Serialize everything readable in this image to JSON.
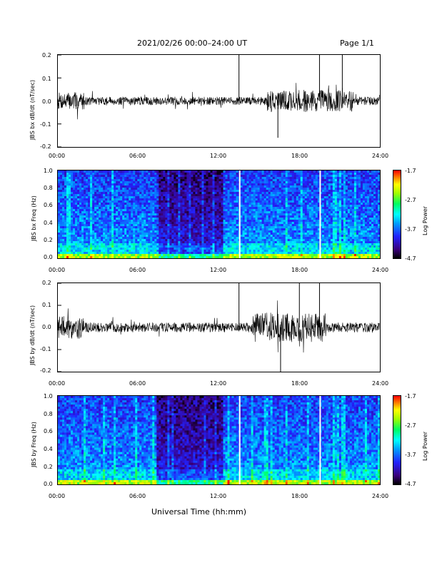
{
  "header": {
    "title": "2021/02/26  00:00–24:00 UT",
    "page": "Page 1/1"
  },
  "x_axis": {
    "ticks": [
      "00:00",
      "06:00",
      "12:00",
      "18:00",
      "24:00"
    ],
    "label": "Universal Time (hh:mm)"
  },
  "chart_data": [
    {
      "type": "line",
      "ylabel": "JBS bx dB/dt (nT/sec)",
      "x_range_hours": [
        0,
        24
      ],
      "ylim": [
        -0.2,
        0.2
      ],
      "yticks": [
        "0.2",
        "0.1",
        "0.0",
        "-0.1",
        "-0.2"
      ],
      "spikes": [
        {
          "hour": 13.5,
          "value": 0.2
        },
        {
          "hour": 16.4,
          "value": -0.16
        },
        {
          "hour": 19.5,
          "value": 0.2
        },
        {
          "hour": 21.2,
          "value": 0.2
        }
      ]
    },
    {
      "type": "heatmap",
      "ylabel": "JBS bx Freq (Hz)",
      "ylim": [
        0.0,
        1.0
      ],
      "yticks": [
        "1.0",
        "0.8",
        "0.6",
        "0.4",
        "0.2",
        "0.0"
      ],
      "colorbar": {
        "label": "Log Power",
        "ticks": [
          "-1.7",
          "-2.7",
          "-3.7",
          "-4.7"
        ]
      }
    },
    {
      "type": "line",
      "ylabel": "JBS by dB/dt (nT/sec)",
      "x_range_hours": [
        0,
        24
      ],
      "ylim": [
        -0.2,
        0.2
      ],
      "yticks": [
        "0.2",
        "0.1",
        "0.0",
        "-0.1",
        "-0.2"
      ],
      "spikes": [
        {
          "hour": 13.5,
          "value": 0.2
        },
        {
          "hour": 16.6,
          "value": -0.2
        },
        {
          "hour": 18.0,
          "value": 0.2
        },
        {
          "hour": 19.5,
          "value": 0.2
        }
      ]
    },
    {
      "type": "heatmap",
      "ylabel": "JBS by Freq (Hz)",
      "ylim": [
        0.0,
        1.0
      ],
      "yticks": [
        "1.0",
        "0.8",
        "0.6",
        "0.4",
        "0.2",
        "0.0"
      ],
      "colorbar": {
        "label": "Log Power",
        "ticks": [
          "-1.7",
          "-2.7",
          "-3.7",
          "-4.7"
        ]
      }
    }
  ]
}
